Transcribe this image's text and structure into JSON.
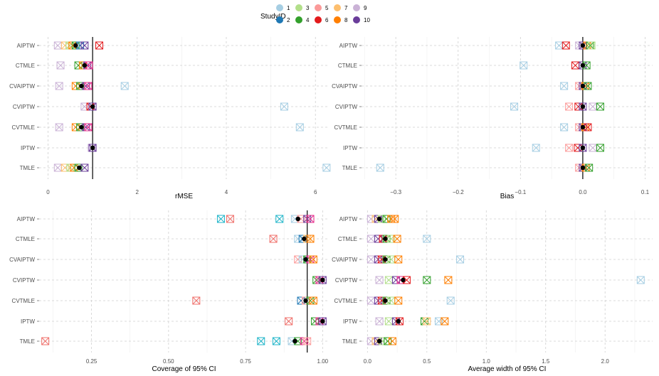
{
  "legend": {
    "title": "StudyID",
    "items": [
      {
        "id": "1",
        "color": "#a6cee3"
      },
      {
        "id": "2",
        "color": "#1f78b4"
      },
      {
        "id": "3",
        "color": "#b2df8a"
      },
      {
        "id": "4",
        "color": "#33a02c"
      },
      {
        "id": "5",
        "color": "#fb9a99"
      },
      {
        "id": "6",
        "color": "#e31a1c"
      },
      {
        "id": "7",
        "color": "#fdbf6f"
      },
      {
        "id": "8",
        "color": "#ff7f00"
      },
      {
        "id": "9",
        "color": "#cab2d6"
      },
      {
        "id": "10",
        "color": "#6a3d9a"
      }
    ]
  },
  "marker_colors": {
    "teal": "#1fb5c9",
    "salmon": "#ef6f6a",
    "pink": "#e7298a",
    "mean": "#000000"
  },
  "chart_data": [
    {
      "type": "scatter",
      "id": "rmse",
      "xlabel": "rMSE",
      "categories": [
        "AIPTW",
        "CTMLE",
        "CVAIPTW",
        "CVIPTW",
        "CVTMLE",
        "IPTW",
        "TMLE"
      ],
      "xlim": [
        -0.2,
        6.3
      ],
      "xticks": [
        0,
        2,
        4,
        6
      ],
      "tick_labels": [
        "0",
        "2",
        "4",
        "6"
      ],
      "reference_line": 1,
      "points": {
        "AIPTW": [
          [
            0.22,
            "#cab2d6"
          ],
          [
            0.38,
            "#fdbf6f"
          ],
          [
            0.48,
            "#b2df8a"
          ],
          [
            0.55,
            "#ff7f00"
          ],
          [
            0.62,
            "#33a02c"
          ],
          [
            0.72,
            "#1f78b4"
          ],
          [
            0.82,
            "#6a3d9a"
          ],
          [
            1.15,
            "#e31a1c"
          ]
        ],
        "CTMLE": [
          [
            0.28,
            "#cab2d6"
          ],
          [
            0.68,
            "#33a02c"
          ],
          [
            0.78,
            "#ff7f00"
          ],
          [
            0.88,
            "#6a3d9a"
          ],
          [
            0.92,
            "#e7298a"
          ]
        ],
        "CVAIPTW": [
          [
            0.25,
            "#cab2d6"
          ],
          [
            0.62,
            "#ff7f00"
          ],
          [
            0.72,
            "#33a02c"
          ],
          [
            0.85,
            "#6a3d9a"
          ],
          [
            0.9,
            "#e7298a"
          ],
          [
            1.72,
            "#a6cee3"
          ]
        ],
        "CVIPTW": [
          [
            0.82,
            "#cab2d6"
          ],
          [
            0.95,
            "#e31a1c"
          ],
          [
            1.0,
            "#6a3d9a"
          ],
          [
            5.3,
            "#a6cee3"
          ]
        ],
        "CVTMLE": [
          [
            0.25,
            "#cab2d6"
          ],
          [
            0.62,
            "#ff7f00"
          ],
          [
            0.72,
            "#33a02c"
          ],
          [
            0.85,
            "#6a3d9a"
          ],
          [
            0.9,
            "#e7298a"
          ],
          [
            5.65,
            "#a6cee3"
          ]
        ],
        "IPTW": [
          [
            0.98,
            "#cab2d6"
          ],
          [
            1.0,
            "#6a3d9a"
          ]
        ],
        "TMLE": [
          [
            0.22,
            "#cab2d6"
          ],
          [
            0.38,
            "#fdbf6f"
          ],
          [
            0.5,
            "#b2df8a"
          ],
          [
            0.58,
            "#ff7f00"
          ],
          [
            0.68,
            "#33a02c"
          ],
          [
            0.82,
            "#6a3d9a"
          ],
          [
            6.25,
            "#a6cee3"
          ]
        ]
      },
      "means": {
        "AIPTW": 0.62,
        "CTMLE": 0.82,
        "CVAIPTW": 0.75,
        "CVIPTW": 1.0,
        "CVTMLE": 0.75,
        "IPTW": 1.0,
        "TMLE": 0.7
      }
    },
    {
      "type": "scatter",
      "id": "bias",
      "xlabel": "Bias",
      "categories": [
        "AIPTW",
        "CTMLE",
        "CVAIPTW",
        "CVIPTW",
        "CVTMLE",
        "IPTW",
        "TMLE"
      ],
      "xlim": [
        -0.355,
        0.112
      ],
      "xticks": [
        -0.3,
        -0.2,
        -0.1,
        0.0,
        0.1
      ],
      "tick_labels": [
        "−0.3",
        "−0.2",
        "−0.1",
        "0.0",
        "0.1"
      ],
      "reference_line": 0,
      "points": {
        "AIPTW": [
          [
            -0.038,
            "#a6cee3"
          ],
          [
            -0.027,
            "#e31a1c"
          ],
          [
            -0.006,
            "#cab2d6"
          ],
          [
            0.0,
            "#6a3d9a"
          ],
          [
            0.007,
            "#ff7f00"
          ],
          [
            0.012,
            "#33a02c"
          ],
          [
            0.014,
            "#b2df8a"
          ]
        ],
        "CTMLE": [
          [
            -0.095,
            "#a6cee3"
          ],
          [
            -0.012,
            "#e31a1c"
          ],
          [
            0.0,
            "#6a3d9a"
          ],
          [
            0.006,
            "#33a02c"
          ]
        ],
        "CVAIPTW": [
          [
            -0.03,
            "#a6cee3"
          ],
          [
            -0.006,
            "#fb9a99"
          ],
          [
            0.0,
            "#6a3d9a"
          ],
          [
            0.004,
            "#ff7f00"
          ],
          [
            0.008,
            "#33a02c"
          ]
        ],
        "CVIPTW": [
          [
            -0.11,
            "#a6cee3"
          ],
          [
            -0.022,
            "#fb9a99"
          ],
          [
            -0.007,
            "#e31a1c"
          ],
          [
            0.0,
            "#6a3d9a"
          ],
          [
            0.016,
            "#cab2d6"
          ],
          [
            0.028,
            "#33a02c"
          ]
        ],
        "CVTMLE": [
          [
            -0.03,
            "#a6cee3"
          ],
          [
            -0.006,
            "#fb9a99"
          ],
          [
            0.0,
            "#6a3d9a"
          ],
          [
            0.004,
            "#ff7f00"
          ],
          [
            0.008,
            "#e31a1c"
          ]
        ],
        "IPTW": [
          [
            -0.075,
            "#a6cee3"
          ],
          [
            -0.022,
            "#fb9a99"
          ],
          [
            -0.008,
            "#e31a1c"
          ],
          [
            0.0,
            "#6a3d9a"
          ],
          [
            0.016,
            "#cab2d6"
          ],
          [
            0.028,
            "#33a02c"
          ]
        ],
        "TMLE": [
          [
            -0.325,
            "#a6cee3"
          ],
          [
            -0.006,
            "#fb9a99"
          ],
          [
            0.0,
            "#6a3d9a"
          ],
          [
            0.005,
            "#ff7f00"
          ],
          [
            0.01,
            "#33a02c"
          ]
        ]
      },
      "means": {
        "AIPTW": 0.0,
        "CTMLE": 0.0,
        "CVAIPTW": 0.0,
        "CVIPTW": 0.0,
        "CVTMLE": 0.0,
        "IPTW": 0.0,
        "TMLE": 0.0
      }
    },
    {
      "type": "scatter",
      "id": "coverage",
      "xlabel": "Coverage of 95% CI",
      "categories": [
        "AIPTW",
        "CTMLE",
        "CVAIPTW",
        "CVIPTW",
        "CVTMLE",
        "IPTW",
        "TMLE"
      ],
      "xlim": [
        0.08,
        1.02
      ],
      "xticks": [
        0.25,
        0.5,
        0.75,
        1.0
      ],
      "tick_labels": [
        "0.25",
        "0.50",
        "0.75",
        "1.00"
      ],
      "reference_line": 0.95,
      "points": {
        "AIPTW": [
          [
            0.67,
            "#1fb5c9"
          ],
          [
            0.7,
            "#ef6f6a"
          ],
          [
            0.86,
            "#1fb5c9"
          ],
          [
            0.91,
            "#a6cee3"
          ],
          [
            0.93,
            "#fb9a99"
          ],
          [
            0.95,
            "#6a3d9a"
          ],
          [
            0.96,
            "#e7298a"
          ]
        ],
        "CTMLE": [
          [
            0.84,
            "#ef6f6a"
          ],
          [
            0.92,
            "#a6cee3"
          ],
          [
            0.935,
            "#1f78b4"
          ],
          [
            0.95,
            "#fdbf6f"
          ],
          [
            0.96,
            "#ff7f00"
          ]
        ],
        "CVAIPTW": [
          [
            0.92,
            "#fb9a99"
          ],
          [
            0.935,
            "#a6cee3"
          ],
          [
            0.95,
            "#33a02c"
          ],
          [
            0.96,
            "#e7298a"
          ],
          [
            0.97,
            "#ff7f00"
          ]
        ],
        "CVIPTW": [
          [
            0.98,
            "#33a02c"
          ],
          [
            0.99,
            "#e7298a"
          ],
          [
            1.0,
            "#6a3d9a"
          ]
        ],
        "CVTMLE": [
          [
            0.59,
            "#ef6f6a"
          ],
          [
            0.93,
            "#1f78b4"
          ],
          [
            0.945,
            "#fb9a99"
          ],
          [
            0.96,
            "#33a02c"
          ],
          [
            0.97,
            "#ff7f00"
          ]
        ],
        "IPTW": [
          [
            0.89,
            "#ef6f6a"
          ],
          [
            0.975,
            "#33a02c"
          ],
          [
            0.99,
            "#e7298a"
          ],
          [
            1.0,
            "#6a3d9a"
          ]
        ],
        "TMLE": [
          [
            0.1,
            "#ef6f6a"
          ],
          [
            0.8,
            "#1fb5c9"
          ],
          [
            0.85,
            "#1fb5c9"
          ],
          [
            0.9,
            "#a6cee3"
          ],
          [
            0.92,
            "#33a02c"
          ],
          [
            0.94,
            "#e7298a"
          ],
          [
            0.95,
            "#fb9a99"
          ]
        ]
      },
      "means": {
        "AIPTW": 0.92,
        "CTMLE": 0.94,
        "CVAIPTW": 0.945,
        "CVIPTW": 1.0,
        "CVTMLE": 0.945,
        "IPTW": 1.0,
        "TMLE": 0.91
      }
    },
    {
      "type": "scatter",
      "id": "width",
      "xlabel": "Average width of 95% CI",
      "categories": [
        "AIPTW",
        "CTMLE",
        "CVAIPTW",
        "CVIPTW",
        "CVTMLE",
        "IPTW",
        "TMLE"
      ],
      "xlim": [
        -0.05,
        2.4
      ],
      "xticks": [
        0.0,
        0.5,
        1.0,
        1.5,
        2.0
      ],
      "tick_labels": [
        "0.0",
        "0.5",
        "1.0",
        "1.5",
        "2.0"
      ],
      "reference_line": null,
      "points": {
        "AIPTW": [
          [
            0.03,
            "#cab2d6"
          ],
          [
            0.07,
            "#fdbf6f"
          ],
          [
            0.09,
            "#6a3d9a"
          ],
          [
            0.12,
            "#b2df8a"
          ],
          [
            0.16,
            "#33a02c"
          ],
          [
            0.2,
            "#ff7f00"
          ],
          [
            0.23,
            "#ff7f00"
          ]
        ],
        "CTMLE": [
          [
            0.03,
            "#cab2d6"
          ],
          [
            0.09,
            "#6a3d9a"
          ],
          [
            0.13,
            "#e31a1c"
          ],
          [
            0.16,
            "#33a02c"
          ],
          [
            0.2,
            "#b2df8a"
          ],
          [
            0.25,
            "#ff7f00"
          ],
          [
            0.5,
            "#a6cee3"
          ]
        ],
        "CVAIPTW": [
          [
            0.03,
            "#cab2d6"
          ],
          [
            0.09,
            "#6a3d9a"
          ],
          [
            0.12,
            "#e31a1c"
          ],
          [
            0.16,
            "#33a02c"
          ],
          [
            0.2,
            "#b2df8a"
          ],
          [
            0.26,
            "#ff7f00"
          ],
          [
            0.78,
            "#a6cee3"
          ]
        ],
        "CVIPTW": [
          [
            0.1,
            "#cab2d6"
          ],
          [
            0.18,
            "#b2df8a"
          ],
          [
            0.24,
            "#6a3d9a"
          ],
          [
            0.28,
            "#e7298a"
          ],
          [
            0.33,
            "#e31a1c"
          ],
          [
            0.5,
            "#33a02c"
          ],
          [
            0.68,
            "#ff7f00"
          ],
          [
            2.3,
            "#a6cee3"
          ]
        ],
        "CVTMLE": [
          [
            0.03,
            "#cab2d6"
          ],
          [
            0.09,
            "#6a3d9a"
          ],
          [
            0.12,
            "#e31a1c"
          ],
          [
            0.16,
            "#33a02c"
          ],
          [
            0.2,
            "#b2df8a"
          ],
          [
            0.26,
            "#ff7f00"
          ],
          [
            0.7,
            "#a6cee3"
          ]
        ],
        "IPTW": [
          [
            0.1,
            "#cab2d6"
          ],
          [
            0.18,
            "#b2df8a"
          ],
          [
            0.24,
            "#6a3d9a"
          ],
          [
            0.27,
            "#e31a1c"
          ],
          [
            0.48,
            "#33a02c"
          ],
          [
            0.5,
            "#fdbf6f"
          ],
          [
            0.6,
            "#a6cee3"
          ],
          [
            0.65,
            "#ff7f00"
          ]
        ],
        "TMLE": [
          [
            0.03,
            "#cab2d6"
          ],
          [
            0.07,
            "#fdbf6f"
          ],
          [
            0.09,
            "#6a3d9a"
          ],
          [
            0.13,
            "#b2df8a"
          ],
          [
            0.17,
            "#33a02c"
          ],
          [
            0.21,
            "#ff7f00"
          ]
        ]
      },
      "means": {
        "AIPTW": 0.1,
        "CTMLE": 0.15,
        "CVAIPTW": 0.15,
        "CVIPTW": 0.3,
        "CVTMLE": 0.15,
        "IPTW": 0.26,
        "TMLE": 0.1
      }
    }
  ]
}
